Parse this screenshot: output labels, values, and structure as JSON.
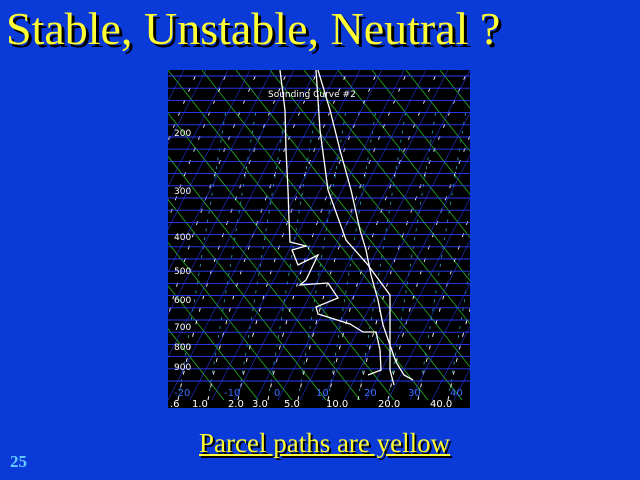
{
  "slide": {
    "title": "Stable, Unstable, Neutral ?",
    "link_text": "Parcel paths are yellow",
    "slide_number": "25"
  },
  "diagram": {
    "title": "Sounding Curve #2",
    "pressure_labels": [
      "200",
      "300",
      "400",
      "500",
      "600",
      "700",
      "800",
      "900"
    ],
    "temperature_labels": [
      "-20",
      "-10",
      "0",
      "10",
      "20",
      "30",
      "40"
    ],
    "mixing_ratio_labels": [
      ".6",
      "1.0",
      "2.0",
      "3.0",
      "5.0",
      "10.0",
      "20.0",
      "40.0"
    ],
    "colors": {
      "isobar": "#2a3cff",
      "isotherm": "#2a3cff",
      "dry_adiabat": "#22b322",
      "moist_adiabat": "#ffffff",
      "mixing_ratio": "#2ea6c8",
      "sounding": "#ffffff",
      "temperature_labels": "#3a6cff",
      "mixing_ratio_text": "#ffffff"
    }
  }
}
